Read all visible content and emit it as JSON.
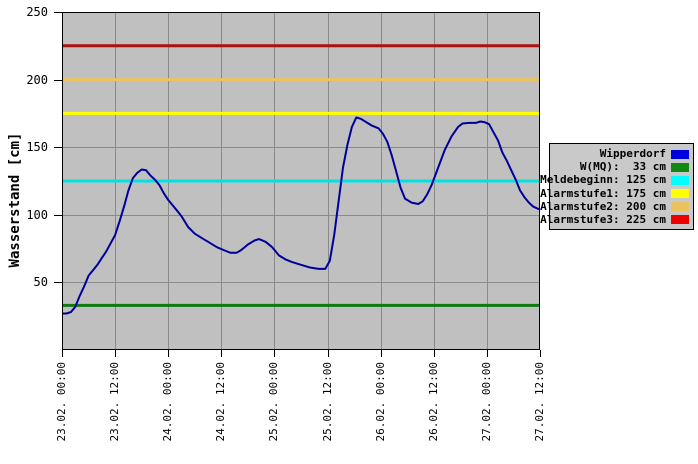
{
  "chart_data": {
    "type": "line",
    "title": "",
    "xlabel": "",
    "ylabel": "Wasserstand [cm]",
    "ylim": [
      0,
      250
    ],
    "y_tick_step": 50,
    "y_tick_labels": [
      "250",
      "200",
      "150",
      "100",
      "50"
    ],
    "x_hours_range": [
      0,
      108
    ],
    "x_tick_interval_hours": 12,
    "x_tick_labels": [
      "23.02. 00:00",
      "23.02. 12:00",
      "24.02. 00:00",
      "24.02. 12:00",
      "25.02. 00:00",
      "25.02. 12:00",
      "26.02. 00:00",
      "26.02. 12:00",
      "27.02. 00:00",
      "27.02. 12:00"
    ],
    "grid": true,
    "plot_background": "#c0c0c0",
    "grid_color": "#8a8a8a",
    "series": [
      {
        "name": "Wipperdorf",
        "color": "#000099",
        "unit": "cm",
        "points": [
          [
            0,
            27
          ],
          [
            1,
            27
          ],
          [
            2,
            28
          ],
          [
            3,
            32
          ],
          [
            4,
            40
          ],
          [
            5,
            47
          ],
          [
            6,
            55
          ],
          [
            7,
            59
          ],
          [
            8,
            63
          ],
          [
            9,
            68
          ],
          [
            10,
            73
          ],
          [
            11,
            79
          ],
          [
            12,
            85
          ],
          [
            13,
            95
          ],
          [
            14,
            106
          ],
          [
            15,
            118
          ],
          [
            16,
            127
          ],
          [
            17,
            131
          ],
          [
            18,
            133.5
          ],
          [
            19,
            133
          ],
          [
            20,
            129
          ],
          [
            21,
            126
          ],
          [
            22,
            122
          ],
          [
            23,
            116
          ],
          [
            24,
            111
          ],
          [
            25,
            107
          ],
          [
            26,
            103
          ],
          [
            27,
            99
          ],
          [
            28.5,
            91
          ],
          [
            30,
            86
          ],
          [
            31.5,
            83
          ],
          [
            33,
            80
          ],
          [
            35,
            76
          ],
          [
            36.5,
            74
          ],
          [
            38,
            72
          ],
          [
            39.5,
            72
          ],
          [
            40.5,
            74
          ],
          [
            42,
            78
          ],
          [
            43.5,
            81
          ],
          [
            44.5,
            82
          ],
          [
            46,
            80
          ],
          [
            47.5,
            76
          ],
          [
            49,
            70
          ],
          [
            50.5,
            67
          ],
          [
            52,
            65
          ],
          [
            54,
            63
          ],
          [
            56,
            61
          ],
          [
            58,
            60
          ],
          [
            59.5,
            60
          ],
          [
            60.5,
            66
          ],
          [
            61.5,
            85
          ],
          [
            62.5,
            110
          ],
          [
            63.5,
            135
          ],
          [
            64.5,
            152
          ],
          [
            65.5,
            165
          ],
          [
            66.5,
            172
          ],
          [
            67.5,
            171
          ],
          [
            68.5,
            169
          ],
          [
            70,
            166
          ],
          [
            71.5,
            164
          ],
          [
            72.5,
            160
          ],
          [
            73.5,
            154
          ],
          [
            74.5,
            144
          ],
          [
            75.5,
            132
          ],
          [
            76.5,
            120
          ],
          [
            77.5,
            112
          ],
          [
            79,
            109
          ],
          [
            80.5,
            108
          ],
          [
            81.5,
            110
          ],
          [
            82.5,
            115
          ],
          [
            83.5,
            122
          ],
          [
            85,
            135
          ],
          [
            86.5,
            148
          ],
          [
            88,
            158
          ],
          [
            89.5,
            165
          ],
          [
            90.5,
            167.5
          ],
          [
            92,
            168
          ],
          [
            93.5,
            168
          ],
          [
            94.5,
            169
          ],
          [
            95.5,
            168.5
          ],
          [
            96.5,
            167
          ],
          [
            97.5,
            161
          ],
          [
            98.5,
            155
          ],
          [
            99.5,
            146
          ],
          [
            100.5,
            140
          ],
          [
            101.5,
            133
          ],
          [
            102.5,
            126
          ],
          [
            103.5,
            118
          ],
          [
            104.5,
            113
          ],
          [
            105.5,
            109
          ],
          [
            106.5,
            106
          ],
          [
            107.5,
            104.5
          ],
          [
            108,
            104
          ]
        ]
      }
    ],
    "thresholds": [
      {
        "name": "W(MQ)",
        "value": 33,
        "color": "#0f7a0f"
      },
      {
        "name": "Meldebeginn",
        "value": 125,
        "color": "#00e2e2"
      },
      {
        "name": "Alarmstufe1",
        "value": 175,
        "color": "#ffff00"
      },
      {
        "name": "Alarmstufe2",
        "value": 200,
        "color": "#e9c45e"
      },
      {
        "name": "Alarmstufe3",
        "value": 225,
        "color": "#aa1111"
      }
    ],
    "legend": {
      "position": "right",
      "entries": [
        {
          "label": "Wipperdorf",
          "swatch": "#0000dd"
        },
        {
          "label": "W(MQ):  33 cm",
          "swatch": "#118811"
        },
        {
          "label": "Meldebeginn: 125 cm",
          "swatch": "#00ffff"
        },
        {
          "label": "Alarmstufe1: 175 cm",
          "swatch": "#ffff00"
        },
        {
          "label": "Alarmstufe2: 200 cm",
          "swatch": "#e9c45e"
        },
        {
          "label": "Alarmstufe3: 225 cm",
          "swatch": "#ee0000"
        }
      ]
    }
  }
}
